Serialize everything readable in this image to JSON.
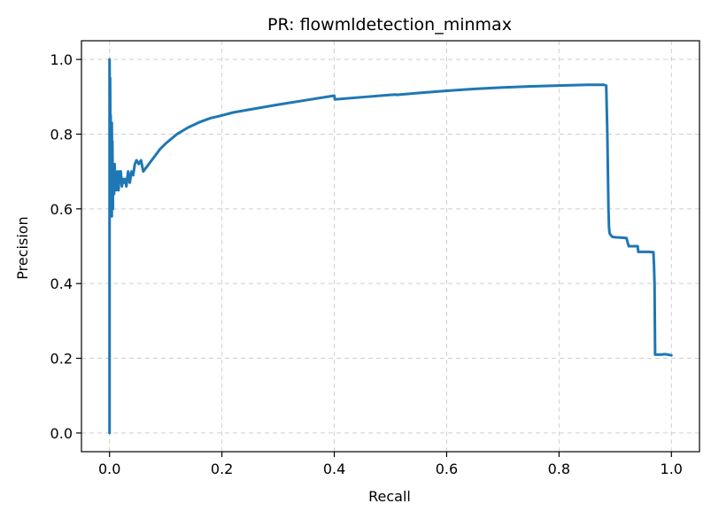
{
  "chart_data": {
    "type": "line",
    "title": "PR: flowmldetection_minmax",
    "xlabel": "Recall",
    "ylabel": "Precision",
    "xlim": [
      -0.05,
      1.05
    ],
    "ylim": [
      -0.05,
      1.05
    ],
    "xticks": [
      0.0,
      0.2,
      0.4,
      0.6,
      0.8,
      1.0
    ],
    "xtick_labels": [
      "0.0",
      "0.2",
      "0.4",
      "0.6",
      "0.8",
      "1.0"
    ],
    "yticks": [
      0.0,
      0.2,
      0.4,
      0.6,
      0.8,
      1.0
    ],
    "ytick_labels": [
      "0.0",
      "0.2",
      "0.4",
      "0.6",
      "0.8",
      "1.0"
    ],
    "grid": true,
    "line_color": "#1f77b4",
    "series": [
      {
        "x": [
          0.0,
          0.0,
          0.0,
          0.001,
          0.001,
          0.002,
          0.002,
          0.003,
          0.003,
          0.004,
          0.004,
          0.005,
          0.005,
          0.006,
          0.006,
          0.007,
          0.008,
          0.009,
          0.01,
          0.012,
          0.014,
          0.016,
          0.018,
          0.02,
          0.022,
          0.024,
          0.026,
          0.028,
          0.03,
          0.033,
          0.036,
          0.039,
          0.042,
          0.045,
          0.048,
          0.052,
          0.056,
          0.06,
          0.065,
          0.07,
          0.08,
          0.09,
          0.1,
          0.12,
          0.14,
          0.16,
          0.18,
          0.2,
          0.22,
          0.25,
          0.3,
          0.35,
          0.4,
          0.401,
          0.45,
          0.5,
          0.51,
          0.511,
          0.55,
          0.6,
          0.65,
          0.7,
          0.75,
          0.8,
          0.85,
          0.88,
          0.884,
          0.886,
          0.887,
          0.888,
          0.889,
          0.89,
          0.892,
          0.895,
          0.9,
          0.91,
          0.92,
          0.924,
          0.925,
          0.94,
          0.941,
          0.96,
          0.968,
          0.969,
          0.97,
          0.971,
          0.972,
          0.973,
          0.98,
          0.99,
          1.0
        ],
        "y": [
          0.0,
          0.5,
          1.0,
          0.7,
          0.95,
          0.65,
          0.85,
          0.6,
          0.75,
          0.58,
          0.83,
          0.62,
          0.78,
          0.6,
          0.7,
          0.68,
          0.64,
          0.72,
          0.66,
          0.65,
          0.7,
          0.65,
          0.7,
          0.7,
          0.66,
          0.68,
          0.67,
          0.68,
          0.66,
          0.7,
          0.67,
          0.7,
          0.69,
          0.72,
          0.73,
          0.72,
          0.73,
          0.7,
          0.71,
          0.72,
          0.74,
          0.76,
          0.775,
          0.8,
          0.818,
          0.832,
          0.843,
          0.85,
          0.858,
          0.866,
          0.879,
          0.891,
          0.903,
          0.893,
          0.899,
          0.905,
          0.906,
          0.905,
          0.91,
          0.916,
          0.921,
          0.925,
          0.928,
          0.93,
          0.932,
          0.932,
          0.93,
          0.8,
          0.7,
          0.6,
          0.55,
          0.535,
          0.53,
          0.525,
          0.524,
          0.523,
          0.522,
          0.5,
          0.5,
          0.5,
          0.485,
          0.485,
          0.484,
          0.45,
          0.4,
          0.21,
          0.21,
          0.21,
          0.21,
          0.211,
          0.208
        ]
      }
    ]
  }
}
